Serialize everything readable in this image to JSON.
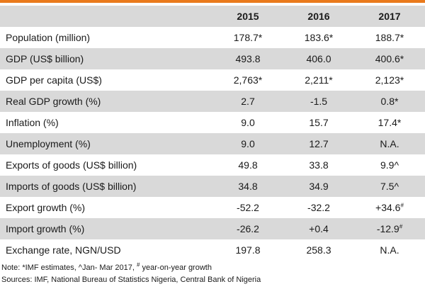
{
  "accent_color": "#ea7a1c",
  "shade_color": "#d9d9d9",
  "table": {
    "columns": [
      "2015",
      "2016",
      "2017"
    ],
    "rows": [
      {
        "label": "Population (million)",
        "values": [
          "178.7*",
          "183.6*",
          "188.7*"
        ]
      },
      {
        "label": "GDP (US$ billion)",
        "values": [
          "493.8",
          "406.0",
          "400.6*"
        ]
      },
      {
        "label": "GDP per capita (US$)",
        "values": [
          "2,763*",
          "2,211*",
          "2,123*"
        ]
      },
      {
        "label": "Real GDP growth (%)",
        "values": [
          "2.7",
          "-1.5",
          "0.8*"
        ]
      },
      {
        "label": "Inflation (%)",
        "values": [
          "9.0",
          "15.7",
          "17.4*"
        ]
      },
      {
        "label": "Unemployment (%)",
        "values": [
          "9.0",
          "12.7",
          "N.A."
        ]
      },
      {
        "label": "Exports of goods (US$ billion)",
        "values": [
          "49.8",
          "33.8",
          "9.9^"
        ]
      },
      {
        "label": "Imports of goods (US$ billion)",
        "values": [
          "34.8",
          "34.9",
          "7.5^"
        ]
      },
      {
        "label": "Export growth (%)",
        "values": [
          "-52.2",
          "-32.2",
          "+34.6"
        ],
        "sup_last": "#"
      },
      {
        "label": "Import growth (%)",
        "values": [
          "-26.2",
          "+0.4",
          "-12.9"
        ],
        "sup_last": "#"
      },
      {
        "label": "Exchange rate, NGN/USD",
        "values": [
          "197.8",
          "258.3",
          "N.A."
        ]
      }
    ]
  },
  "notes": {
    "note_prefix": "Note: *IMF estimates, ^Jan- Mar 2017, ",
    "note_sup": "#",
    "note_suffix": " year-on-year growth",
    "sources": "Sources: IMF, National Bureau of Statistics Nigeria, Central Bank of Nigeria"
  }
}
